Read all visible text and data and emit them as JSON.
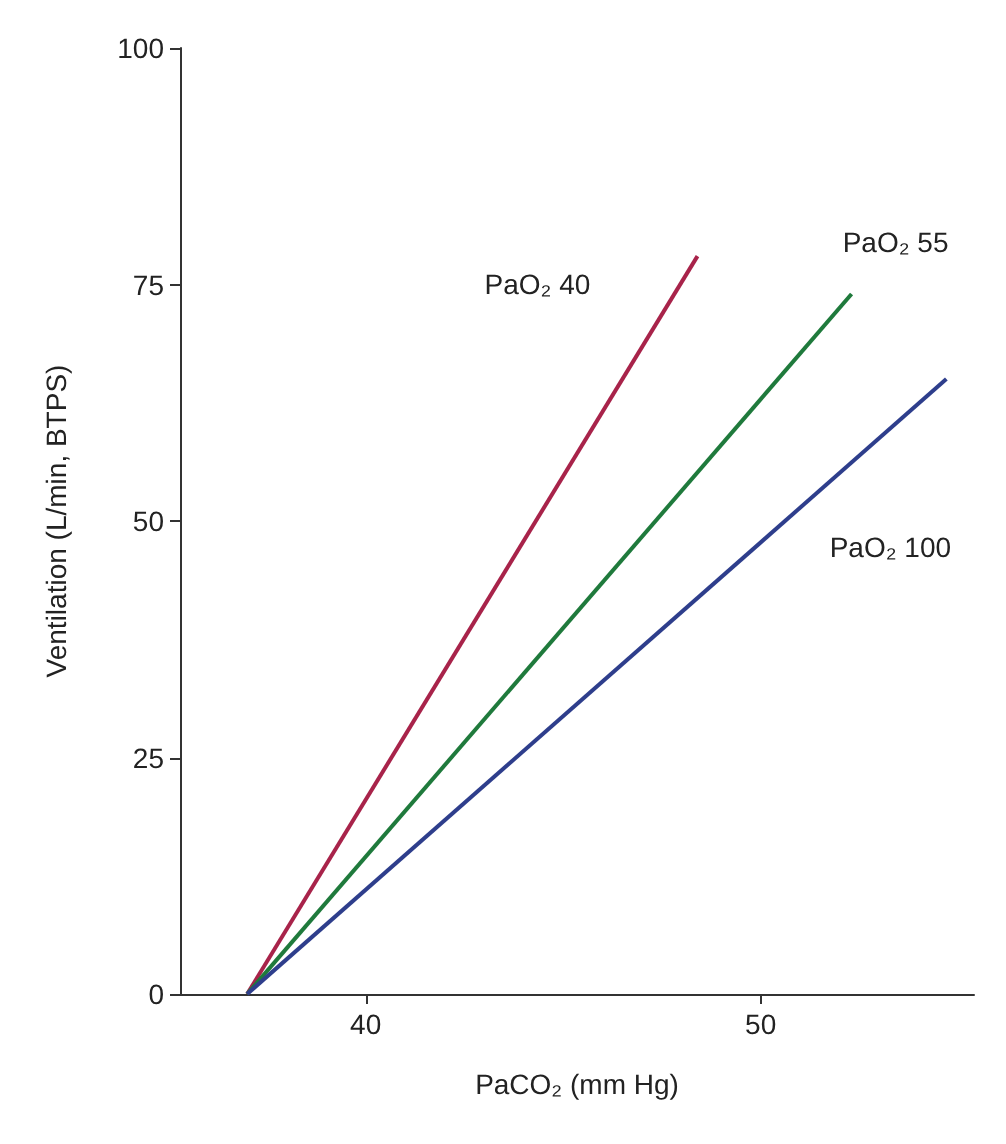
{
  "chart_data": {
    "type": "line",
    "xlabel": "PaCO₂ (mm Hg)",
    "ylabel": "Ventilation (L/min, BTPS)",
    "xlim": [
      35.3,
      55.4
    ],
    "xticks": [
      40,
      50
    ],
    "ylim": [
      0,
      100
    ],
    "yticks": [
      0,
      25,
      50,
      75,
      100
    ],
    "grid": false,
    "legend": false,
    "marker": "none",
    "line_style": "solid",
    "series": [
      {
        "name": "PaO₂ 40",
        "color": "#a8234a",
        "x": [
          37,
          48.4
        ],
        "values": [
          0,
          78
        ]
      },
      {
        "name": "PaO₂ 55",
        "color": "#1f7a3c",
        "x": [
          37,
          52.3
        ],
        "values": [
          0,
          74
        ]
      },
      {
        "name": "PaO₂ 100",
        "color": "#2e3e8c",
        "x": [
          37,
          54.7
        ],
        "values": [
          0,
          65
        ]
      }
    ]
  }
}
